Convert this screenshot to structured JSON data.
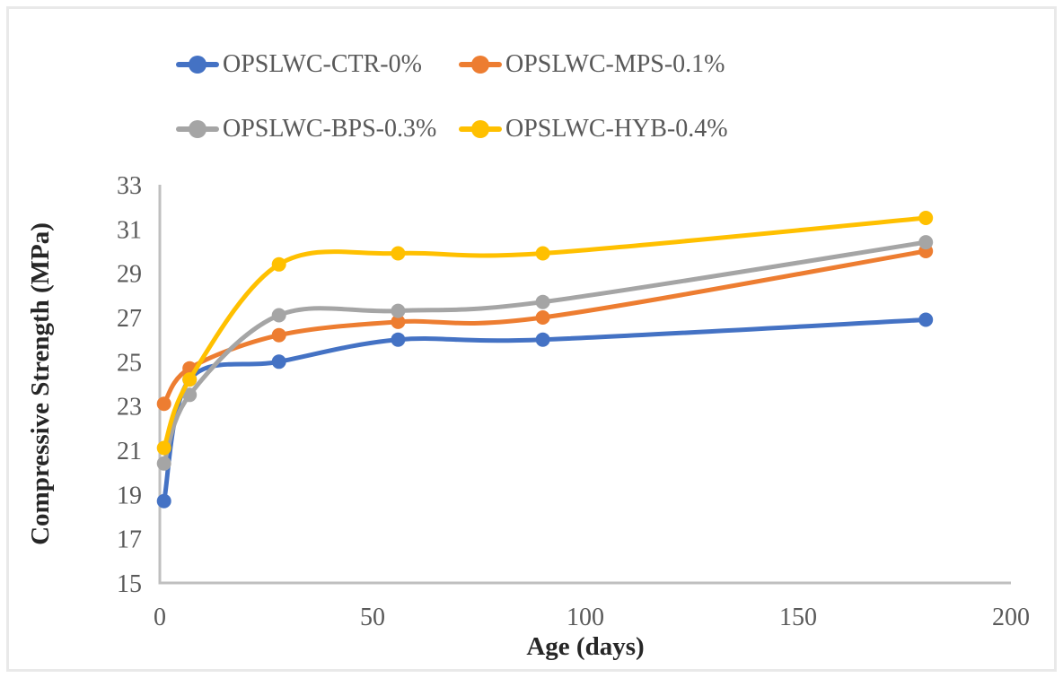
{
  "figure": {
    "background": "#ffffff",
    "border_color": "#e9e9e9"
  },
  "style": {
    "axis_line_color": "#bfbfbf",
    "tick_label_color": "#595959",
    "axis_title_color": "#262626",
    "legend_text_color": "#595959"
  },
  "chart_data": {
    "type": "line",
    "title": "",
    "xlabel": "Age (days)",
    "ylabel": "Compressive Strength (MPa)",
    "x": [
      1,
      7,
      28,
      56,
      90,
      180
    ],
    "series": [
      {
        "name": "OPSLWC-CTR-0%",
        "color": "#4472C4",
        "values": [
          18.7,
          24.2,
          25.0,
          26.0,
          26.0,
          26.9
        ]
      },
      {
        "name": "OPSLWC-MPS-0.1%",
        "color": "#ED7D31",
        "values": [
          23.1,
          24.7,
          26.2,
          26.8,
          27.0,
          30.0
        ]
      },
      {
        "name": "OPSLWC-BPS-0.3%",
        "color": "#A5A5A5",
        "values": [
          20.4,
          23.5,
          27.1,
          27.3,
          27.7,
          30.4
        ]
      },
      {
        "name": "OPSLWC-HYB-0.4%",
        "color": "#FFC000",
        "values": [
          21.1,
          24.2,
          29.4,
          29.9,
          29.9,
          31.5
        ]
      }
    ],
    "xlim": [
      0,
      200
    ],
    "ylim": [
      15,
      33
    ],
    "x_ticks": [
      0,
      50,
      100,
      150,
      200
    ],
    "y_ticks": [
      15,
      17,
      19,
      21,
      23,
      25,
      27,
      29,
      31,
      33
    ],
    "grid": false,
    "smooth_lines": true,
    "marker": "circle",
    "legend_position": "top-two-column"
  }
}
